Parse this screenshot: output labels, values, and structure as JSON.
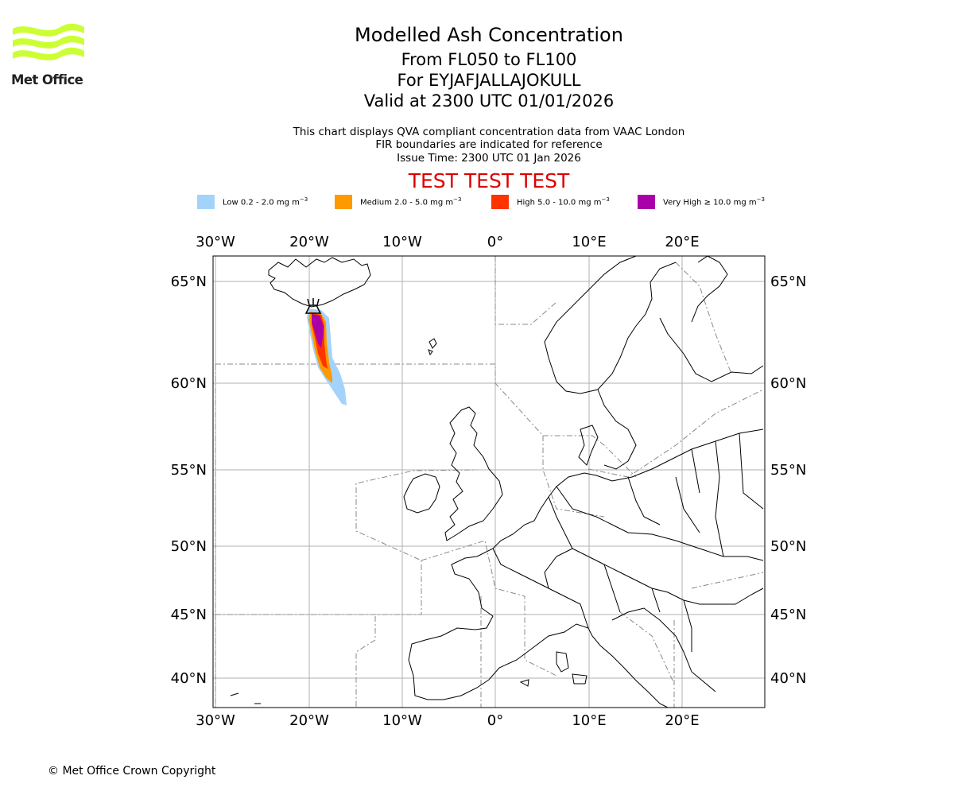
{
  "logo": {
    "text": "Met Office",
    "icon": "met-office-wave-logo",
    "color": "#ccff33"
  },
  "title": {
    "main": "Modelled Ash Concentration",
    "levels": "From FL050 to FL100",
    "volcano": "For EYJAFJALLAJOKULL",
    "valid": "Valid at 2300 UTC 01/01/2026"
  },
  "subtitle": {
    "line1": "This chart displays QVA compliant concentration data from VAAC London",
    "line2": "FIR boundaries are indicated for reference",
    "line3": "Issue Time: 2300 UTC 01 Jan 2026"
  },
  "test_banner": "TEST TEST TEST",
  "legend": [
    {
      "label": "Low 0.2 - 2.0 mg m",
      "color": "#a3d3fb"
    },
    {
      "label": "Medium 2.0 - 5.0 mg m",
      "color": "#ff9900"
    },
    {
      "label": "High 5.0 - 10.0 mg m",
      "color": "#ff3300"
    },
    {
      "label": "Very High ≥ 10.0 mg m",
      "color": "#aa00aa"
    }
  ],
  "legend_unit_exponent": "−3",
  "map": {
    "lon_ticks": [
      "30°W",
      "20°W",
      "10°W",
      "0°",
      "10°E",
      "20°E"
    ],
    "lat_ticks": [
      "65°N",
      "60°N",
      "55°N",
      "50°N",
      "45°N",
      "40°N"
    ],
    "volcano_marker": "volcano-icon"
  },
  "copyright": "© Met Office Crown Copyright"
}
